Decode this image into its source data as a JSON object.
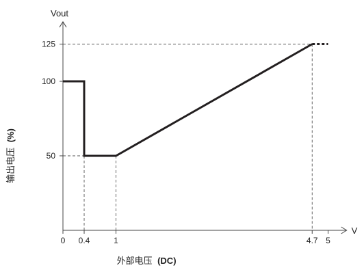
{
  "chart_data": {
    "type": "line",
    "title": "",
    "y_axis_name": "Vout",
    "x_axis_name": "V",
    "xlabel": {
      "text": "外部电压",
      "unit": "(DC)"
    },
    "ylabel": {
      "text": "输出电压",
      "unit": "(%)"
    },
    "xlim": [
      0,
      5.35
    ],
    "ylim": [
      0,
      140
    ],
    "x_ticks": [
      {
        "value": 0,
        "label": "0"
      },
      {
        "value": 0.4,
        "label": "0.4"
      },
      {
        "value": 1,
        "label": "1"
      },
      {
        "value": 4.7,
        "label": "4.7"
      },
      {
        "value": 5,
        "label": "5"
      }
    ],
    "y_ticks": [
      {
        "value": 50,
        "label": "50"
      },
      {
        "value": 100,
        "label": "100"
      },
      {
        "value": 125,
        "label": "125"
      }
    ],
    "series": [
      {
        "points": [
          {
            "x": 0,
            "y": 100
          },
          {
            "x": 0.4,
            "y": 100
          },
          {
            "x": 0.4,
            "y": 50
          },
          {
            "x": 1,
            "y": 50
          },
          {
            "x": 4.7,
            "y": 125
          }
        ],
        "continuation": {
          "from": {
            "x": 4.7,
            "y": 125
          },
          "to": {
            "x": 5,
            "y": 125
          },
          "style": "dotted"
        }
      }
    ],
    "reference_lines": [
      {
        "from": {
          "x": 0,
          "y": 125
        },
        "to": {
          "x": 4.7,
          "y": 125
        }
      },
      {
        "from": {
          "x": 4.7,
          "y": 125
        },
        "to": {
          "x": 4.7,
          "y": 0
        }
      },
      {
        "from": {
          "x": 0,
          "y": 50
        },
        "to": {
          "x": 0.4,
          "y": 50
        }
      },
      {
        "from": {
          "x": 0.4,
          "y": 50
        },
        "to": {
          "x": 0.4,
          "y": 0
        }
      },
      {
        "from": {
          "x": 1,
          "y": 50
        },
        "to": {
          "x": 1,
          "y": 0
        }
      }
    ],
    "grid": false,
    "legend": "none",
    "colors": {
      "line": "#231f20",
      "axis": "#444444",
      "reference": "#555555"
    }
  }
}
